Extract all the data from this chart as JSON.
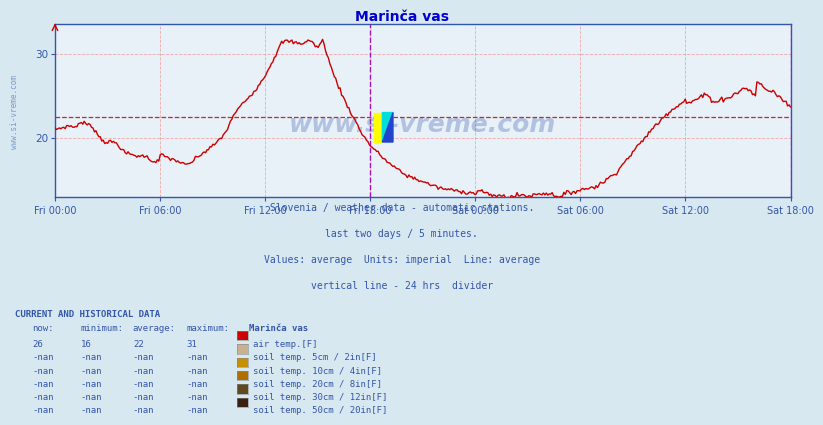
{
  "title": "Marinča vas",
  "title_color": "#0000cc",
  "bg_color": "#d8e8f0",
  "plot_bg_color": "#e8f0f8",
  "grid_color": "#f0a0a0",
  "average_line_value": 22.5,
  "average_line_color": "#cc0000",
  "vert_divider_color": "#9900bb",
  "vert_right_color": "#dd44dd",
  "axis_color": "#3355aa",
  "tick_color": "#3355aa",
  "ylim_min": 13.0,
  "ylim_max": 33.5,
  "yticks": [
    20,
    30
  ],
  "xtick_labels": [
    "Fri 00:00",
    "Fri 06:00",
    "Fri 12:00",
    "Fri 18:00",
    "Sat 00:00",
    "Sat 06:00",
    "Sat 12:00",
    "Sat 18:00"
  ],
  "xtick_positions": [
    0,
    6,
    12,
    18,
    24,
    30,
    36,
    42
  ],
  "line_color": "#cc0000",
  "line_width": 1.0,
  "watermark": "www.si-vreme.com",
  "watermark_color": "#3355aa",
  "watermark_alpha": 0.3,
  "sidebar_watermark": "www.si-vreme.com",
  "subtitle1": "Slovenia / weather data - automatic stations.",
  "subtitle2": "last two days / 5 minutes.",
  "subtitle3": "Values: average  Units: imperial  Line: average",
  "subtitle4": "vertical line - 24 hrs  divider",
  "subtitle_color": "#3355aa",
  "table_header": "CURRENT AND HISTORICAL DATA",
  "table_cols": [
    "now:",
    "minimum:",
    "average:",
    "maximum:",
    "Marinča vas"
  ],
  "table_rows": [
    [
      "26",
      "16",
      "22",
      "31",
      "air temp.[F]",
      "#cc0000"
    ],
    [
      "-nan",
      "-nan",
      "-nan",
      "-nan",
      "soil temp. 5cm / 2in[F]",
      "#c8b090"
    ],
    [
      "-nan",
      "-nan",
      "-nan",
      "-nan",
      "soil temp. 10cm / 4in[F]",
      "#c89000"
    ],
    [
      "-nan",
      "-nan",
      "-nan",
      "-nan",
      "soil temp. 20cm / 8in[F]",
      "#b07000"
    ],
    [
      "-nan",
      "-nan",
      "-nan",
      "-nan",
      "soil temp. 30cm / 12in[F]",
      "#604820"
    ],
    [
      "-nan",
      "-nan",
      "-nan",
      "-nan",
      "soil temp. 50cm / 20in[F]",
      "#3a2010"
    ]
  ]
}
